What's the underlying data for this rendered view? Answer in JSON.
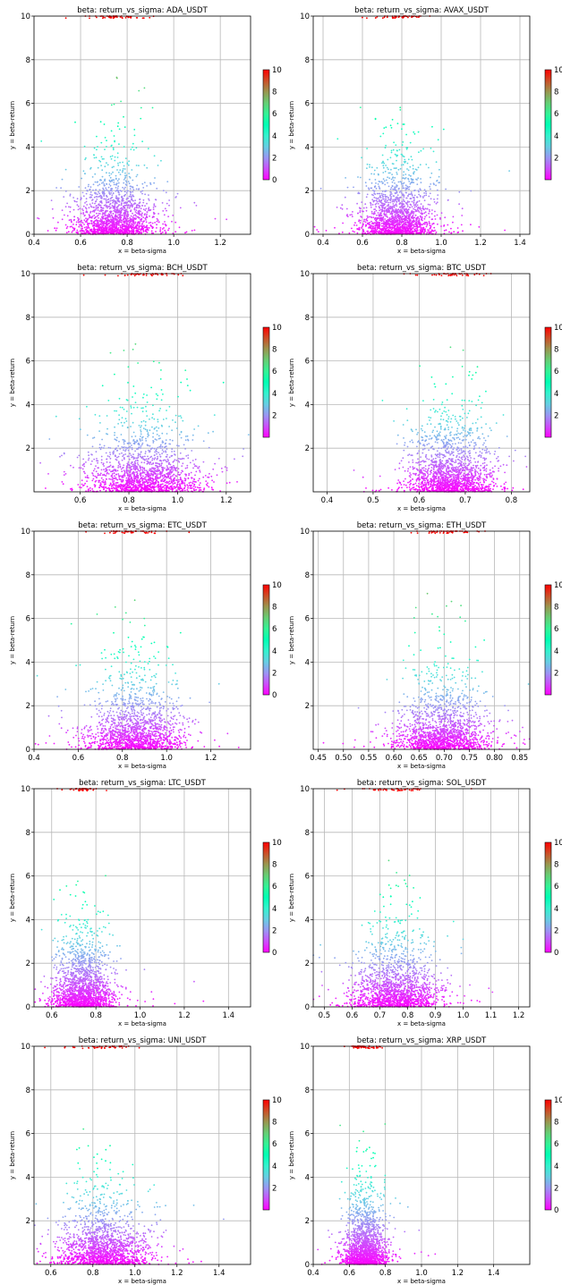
{
  "chart_data": [
    {
      "type": "scatter",
      "title": "beta: return_vs_sigma: ADA_USDT",
      "xlabel": "x = beta-sigma",
      "ylabel": "y = beta-return",
      "xlim": [
        0.4,
        1.33
      ],
      "ylim": [
        0,
        10
      ],
      "xticks": [
        0.4,
        0.6,
        0.8,
        1.0,
        1.2
      ],
      "xtick_labels": [
        "0.4",
        "0.6",
        "0.8",
        "1.0",
        "1.2"
      ],
      "yticks": [
        0,
        2,
        4,
        6,
        8,
        10
      ],
      "ytick_labels": [
        "0",
        "2",
        "4",
        "6",
        "8",
        "10"
      ],
      "x_center": 0.75,
      "x_spread": 0.095,
      "grid": true,
      "colorbar": {
        "label_values": [
          "0",
          "2",
          "4",
          "6",
          "8",
          "10"
        ],
        "range": [
          0,
          10
        ]
      }
    },
    {
      "type": "scatter",
      "title": "beta: return_vs_sigma: AVAX_USDT",
      "xlabel": "x = beta-sigma",
      "ylabel": "y = beta-return",
      "xlim": [
        0.35,
        1.45
      ],
      "ylim": [
        0,
        10
      ],
      "xticks": [
        0.4,
        0.6,
        0.8,
        1.0,
        1.2,
        1.4
      ],
      "xtick_labels": [
        "0.4",
        "0.6",
        "0.8",
        "1.0",
        "1.2",
        "1.4"
      ],
      "yticks": [
        0,
        2,
        4,
        6,
        8,
        10
      ],
      "ytick_labels": [
        "0",
        "2",
        "4",
        "6",
        "8",
        "10"
      ],
      "x_center": 0.78,
      "x_spread": 0.1,
      "grid": true,
      "colorbar": {
        "label_values": [
          "2",
          "4",
          "6",
          "8",
          "10"
        ],
        "range": [
          0,
          10
        ]
      }
    },
    {
      "type": "scatter",
      "title": "beta: return_vs_sigma: BCH_USDT",
      "xlabel": "x = beta-sigma",
      "ylabel": "y = beta-return",
      "xlim": [
        0.41,
        1.3
      ],
      "ylim": [
        0,
        10
      ],
      "xticks": [
        0.6,
        0.8,
        1.0,
        1.2
      ],
      "xtick_labels": [
        "0.6",
        "0.8",
        "1.0",
        "1.2"
      ],
      "yticks": [
        2,
        4,
        6,
        8,
        10
      ],
      "ytick_labels": [
        "2",
        "4",
        "6",
        "8",
        "10"
      ],
      "x_center": 0.86,
      "x_spread": 0.12,
      "grid": true,
      "colorbar": {
        "label_values": [
          "2",
          "4",
          "6",
          "8",
          "10"
        ],
        "range": [
          0,
          10
        ]
      }
    },
    {
      "type": "scatter",
      "title": "beta: return_vs_sigma: BTC_USDT",
      "xlabel": "x = beta-sigma",
      "ylabel": "y = beta-return",
      "xlim": [
        0.37,
        0.84
      ],
      "ylim": [
        0,
        10
      ],
      "xticks": [
        0.4,
        0.5,
        0.6,
        0.7,
        0.8
      ],
      "xtick_labels": [
        "0.4",
        "0.5",
        "0.6",
        "0.7",
        "0.8"
      ],
      "yticks": [
        2,
        4,
        6,
        8,
        10
      ],
      "ytick_labels": [
        "2",
        "4",
        "6",
        "8",
        "10"
      ],
      "x_center": 0.67,
      "x_spread": 0.05,
      "grid": true,
      "colorbar": {
        "label_values": [
          "2",
          "4",
          "6",
          "8",
          "10"
        ],
        "range": [
          0,
          10
        ]
      }
    },
    {
      "type": "scatter",
      "title": "beta: return_vs_sigma: ETC_USDT",
      "xlabel": "x = beta-sigma",
      "ylabel": "y = beta-return",
      "xlim": [
        0.4,
        1.38
      ],
      "ylim": [
        0,
        10
      ],
      "xticks": [
        0.4,
        0.6,
        0.8,
        1.0,
        1.2
      ],
      "xtick_labels": [
        "0.4",
        "0.6",
        "0.8",
        "1.0",
        "1.2"
      ],
      "yticks": [
        0,
        2,
        4,
        6,
        8,
        10
      ],
      "ytick_labels": [
        "0",
        "2",
        "4",
        "6",
        "8",
        "10"
      ],
      "x_center": 0.86,
      "x_spread": 0.11,
      "grid": true,
      "colorbar": {
        "label_values": [
          "0",
          "2",
          "4",
          "6",
          "8",
          "10"
        ],
        "range": [
          0,
          10
        ]
      }
    },
    {
      "type": "scatter",
      "title": "beta: return_vs_sigma: ETH_USDT",
      "xlabel": "x = beta-sigma",
      "ylabel": "y = beta-return",
      "xlim": [
        0.44,
        0.87
      ],
      "ylim": [
        0,
        10
      ],
      "xticks": [
        0.45,
        0.5,
        0.55,
        0.6,
        0.65,
        0.7,
        0.75,
        0.8,
        0.85
      ],
      "xtick_labels": [
        "0.45",
        "0.50",
        "0.55",
        "0.60",
        "0.65",
        "0.70",
        "0.75",
        "0.80",
        "0.85"
      ],
      "yticks": [
        2,
        4,
        6,
        8,
        10
      ],
      "ytick_labels": [
        "2",
        "4",
        "6",
        "8",
        "10"
      ],
      "x_center": 0.7,
      "x_spread": 0.045,
      "grid": true,
      "colorbar": {
        "label_values": [
          "2",
          "4",
          "6",
          "8",
          "10"
        ],
        "range": [
          0,
          10
        ]
      }
    },
    {
      "type": "scatter",
      "title": "beta: return_vs_sigma: LTC_USDT",
      "xlabel": "x = beta-sigma",
      "ylabel": "y = beta-return",
      "xlim": [
        0.52,
        1.5
      ],
      "ylim": [
        0,
        10
      ],
      "xticks": [
        0.6,
        0.8,
        1.0,
        1.2,
        1.4
      ],
      "xtick_labels": [
        "0.6",
        "0.8",
        "1.0",
        "1.2",
        "1.4"
      ],
      "yticks": [
        0,
        2,
        4,
        6,
        8,
        10
      ],
      "ytick_labels": [
        "0",
        "2",
        "4",
        "6",
        "8",
        "10"
      ],
      "x_center": 0.74,
      "x_spread": 0.07,
      "grid": true,
      "colorbar": {
        "label_values": [
          "0",
          "2",
          "4",
          "6",
          "8",
          "10"
        ],
        "range": [
          0,
          10
        ]
      }
    },
    {
      "type": "scatter",
      "title": "beta: return_vs_sigma: SOL_USDT",
      "xlabel": "x = beta-sigma",
      "ylabel": "y = beta-return",
      "xlim": [
        0.46,
        1.24
      ],
      "ylim": [
        0,
        10
      ],
      "xticks": [
        0.5,
        0.6,
        0.7,
        0.8,
        0.9,
        1.0,
        1.1,
        1.2
      ],
      "xtick_labels": [
        "0.5",
        "0.6",
        "0.7",
        "0.8",
        "0.9",
        "1.0",
        "1.1",
        "1.2"
      ],
      "yticks": [
        0,
        2,
        4,
        6,
        8,
        10
      ],
      "ytick_labels": [
        "0",
        "2",
        "4",
        "6",
        "8",
        "10"
      ],
      "x_center": 0.76,
      "x_spread": 0.08,
      "grid": true,
      "colorbar": {
        "label_values": [
          "0",
          "2",
          "4",
          "6",
          "8",
          "10"
        ],
        "range": [
          0,
          10
        ]
      }
    },
    {
      "type": "scatter",
      "title": "beta: return_vs_sigma: UNI_USDT",
      "xlabel": "x = beta-sigma",
      "ylabel": "y = beta-return",
      "xlim": [
        0.52,
        1.55
      ],
      "ylim": [
        0,
        10
      ],
      "xticks": [
        0.6,
        0.8,
        1.0,
        1.2,
        1.4
      ],
      "xtick_labels": [
        "0.6",
        "0.8",
        "1.0",
        "1.2",
        "1.4"
      ],
      "yticks": [
        2,
        4,
        6,
        8,
        10
      ],
      "ytick_labels": [
        "2",
        "4",
        "6",
        "8",
        "10"
      ],
      "x_center": 0.85,
      "x_spread": 0.11,
      "grid": true,
      "colorbar": {
        "label_values": [
          "2",
          "4",
          "6",
          "8",
          "10"
        ],
        "range": [
          0,
          10
        ]
      }
    },
    {
      "type": "scatter",
      "title": "beta: return_vs_sigma: XRP_USDT",
      "xlabel": "x = beta-sigma",
      "ylabel": "y = beta-return",
      "xlim": [
        0.4,
        1.6
      ],
      "ylim": [
        0,
        10
      ],
      "xticks": [
        0.4,
        0.6,
        0.8,
        1.0,
        1.2,
        1.4
      ],
      "xtick_labels": [
        "0.4",
        "0.6",
        "0.8",
        "1.0",
        "1.2",
        "1.4"
      ],
      "yticks": [
        0,
        2,
        4,
        6,
        8,
        10
      ],
      "ytick_labels": [
        "0",
        "2",
        "4",
        "6",
        "8",
        "10"
      ],
      "x_center": 0.69,
      "x_spread": 0.06,
      "grid": true,
      "colorbar": {
        "label_values": [
          "0",
          "2",
          "4",
          "6",
          "8",
          "10"
        ],
        "range": [
          0,
          10
        ]
      }
    }
  ]
}
